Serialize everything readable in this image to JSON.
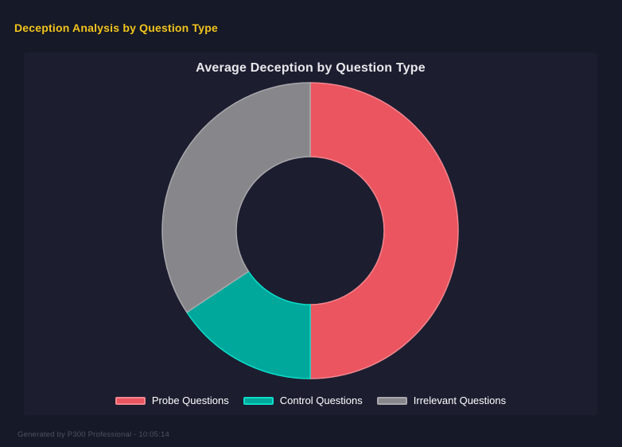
{
  "page": {
    "title": "Deception Analysis by Question Type",
    "footer": "Generated by P300 Professional - 10:05:14"
  },
  "chart_data": {
    "type": "pie",
    "subtype": "donut",
    "title": "Average Deception by Question Type",
    "categories": [
      "Probe Questions",
      "Control Questions",
      "Irrelevant Questions"
    ],
    "values": [
      50,
      15.7,
      34.3
    ],
    "unit": "percent-of-ring",
    "colors": [
      "#ea5560",
      "#00a89b",
      "#87878b"
    ],
    "border_colors": [
      "#f3868e",
      "#0bdcc8",
      "#a8a8ac"
    ],
    "cutout_ratio": 0.5,
    "start_angle_deg": 0,
    "direction": "clockwise",
    "legend_position": "bottom"
  },
  "colors": {
    "page_bg": "#161927",
    "panel_bg": "#1c1e30",
    "header_title": "#f2c41d",
    "chart_title": "#e8e8ec",
    "legend_text": "#ffffff",
    "footer_text": "#4d5164"
  }
}
